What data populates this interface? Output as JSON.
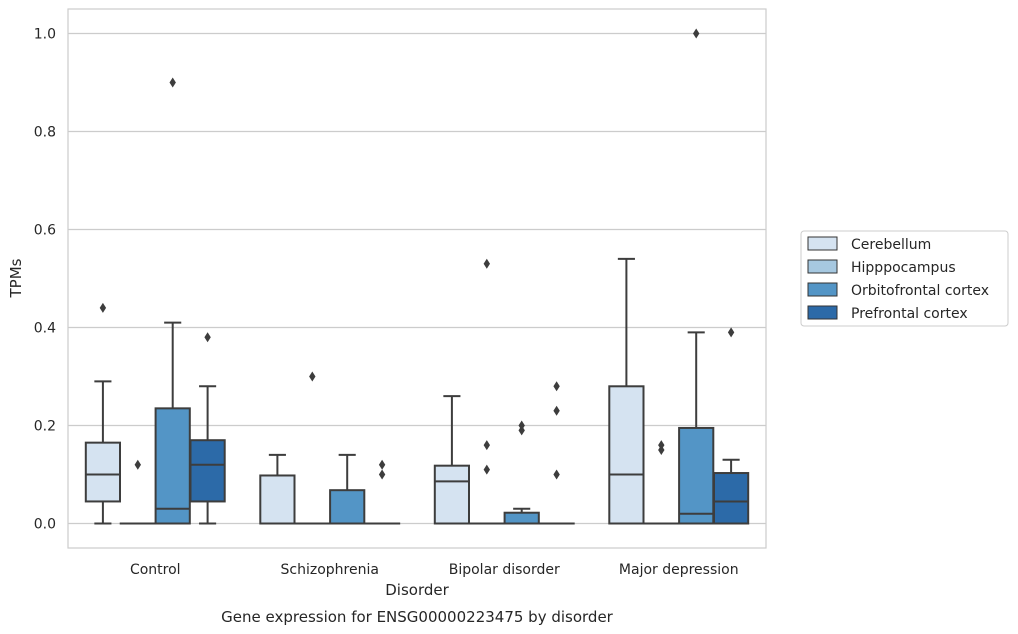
{
  "chart_data": {
    "type": "box",
    "xlabel": "Disorder",
    "ylabel": "TPMs",
    "caption": "Gene expression for ENSG00000223475 by disorder",
    "categories": [
      "Control",
      "Schizophrenia",
      "Bipolar disorder",
      "Major depression"
    ],
    "ylim": [
      -0.05,
      1.05
    ],
    "yticks": [
      "0.0",
      "0.2",
      "0.4",
      "0.6",
      "0.8",
      "1.0"
    ],
    "grid": true,
    "legend_position": "right",
    "series": [
      {
        "name": "Cerebellum",
        "color": "#d5e3f1",
        "boxes": [
          {
            "min": 0.0,
            "q1": 0.045,
            "median": 0.1,
            "q3": 0.165,
            "max": 0.29,
            "outliers": [
              0.44
            ]
          },
          {
            "min": 0.0,
            "q1": 0.0,
            "median": 0.0,
            "q3": 0.098,
            "max": 0.14,
            "outliers": []
          },
          {
            "min": 0.0,
            "q1": 0.0,
            "median": 0.086,
            "q3": 0.118,
            "max": 0.26,
            "outliers": []
          },
          {
            "min": 0.0,
            "q1": 0.0,
            "median": 0.1,
            "q3": 0.28,
            "max": 0.54,
            "outliers": []
          }
        ]
      },
      {
        "name": "Hipppocampus",
        "color": "#a6c8e0",
        "boxes": [
          {
            "min": 0.0,
            "q1": 0.0,
            "median": 0.0,
            "q3": 0.0,
            "max": 0.0,
            "outliers": [
              0.12
            ]
          },
          {
            "min": 0.0,
            "q1": 0.0,
            "median": 0.0,
            "q3": 0.0,
            "max": 0.0,
            "outliers": [
              0.3
            ]
          },
          {
            "min": 0.0,
            "q1": 0.0,
            "median": 0.0,
            "q3": 0.0,
            "max": 0.0,
            "outliers": [
              0.11,
              0.16,
              0.53
            ]
          },
          {
            "min": 0.0,
            "q1": 0.0,
            "median": 0.0,
            "q3": 0.0,
            "max": 0.0,
            "outliers": [
              0.15,
              0.16
            ]
          }
        ]
      },
      {
        "name": "Orbitofrontal cortex",
        "color": "#5395c6",
        "boxes": [
          {
            "min": 0.0,
            "q1": 0.0,
            "median": 0.03,
            "q3": 0.235,
            "max": 0.41,
            "outliers": [
              0.9
            ]
          },
          {
            "min": 0.0,
            "q1": 0.0,
            "median": 0.0,
            "q3": 0.068,
            "max": 0.14,
            "outliers": []
          },
          {
            "min": 0.0,
            "q1": 0.0,
            "median": 0.0,
            "q3": 0.022,
            "max": 0.03,
            "outliers": [
              0.19,
              0.2
            ]
          },
          {
            "min": 0.0,
            "q1": 0.0,
            "median": 0.02,
            "q3": 0.195,
            "max": 0.39,
            "outliers": [
              1.0
            ]
          }
        ]
      },
      {
        "name": "Prefrontal cortex",
        "color": "#2c6aa8",
        "boxes": [
          {
            "min": 0.0,
            "q1": 0.045,
            "median": 0.12,
            "q3": 0.17,
            "max": 0.28,
            "outliers": [
              0.38
            ]
          },
          {
            "min": 0.0,
            "q1": 0.0,
            "median": 0.0,
            "q3": 0.0,
            "max": 0.0,
            "outliers": [
              0.1,
              0.12
            ]
          },
          {
            "min": 0.0,
            "q1": 0.0,
            "median": 0.0,
            "q3": 0.0,
            "max": 0.0,
            "outliers": [
              0.1,
              0.23,
              0.28
            ]
          },
          {
            "min": 0.0,
            "q1": 0.0,
            "median": 0.045,
            "q3": 0.103,
            "max": 0.13,
            "outliers": [
              0.39
            ]
          }
        ]
      }
    ]
  }
}
